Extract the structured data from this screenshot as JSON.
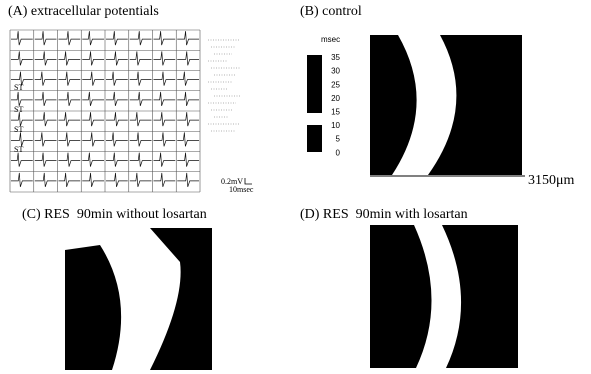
{
  "panels": {
    "a": {
      "title": "(A) extracellular potentials",
      "st_labels": [
        "ST",
        "ST",
        "ST",
        "ST"
      ],
      "scale_voltage": "0.2mV",
      "scale_time": "10msec"
    },
    "b": {
      "title": "(B) control",
      "colorbar": {
        "unit": "msec",
        "ticks": [
          35,
          30,
          25,
          20,
          15,
          10,
          5,
          0
        ]
      },
      "scale": "3150μm"
    },
    "c": {
      "title": "(C) RES  90min without losartan"
    },
    "d": {
      "title": "(D) RES  90min with losartan"
    }
  }
}
